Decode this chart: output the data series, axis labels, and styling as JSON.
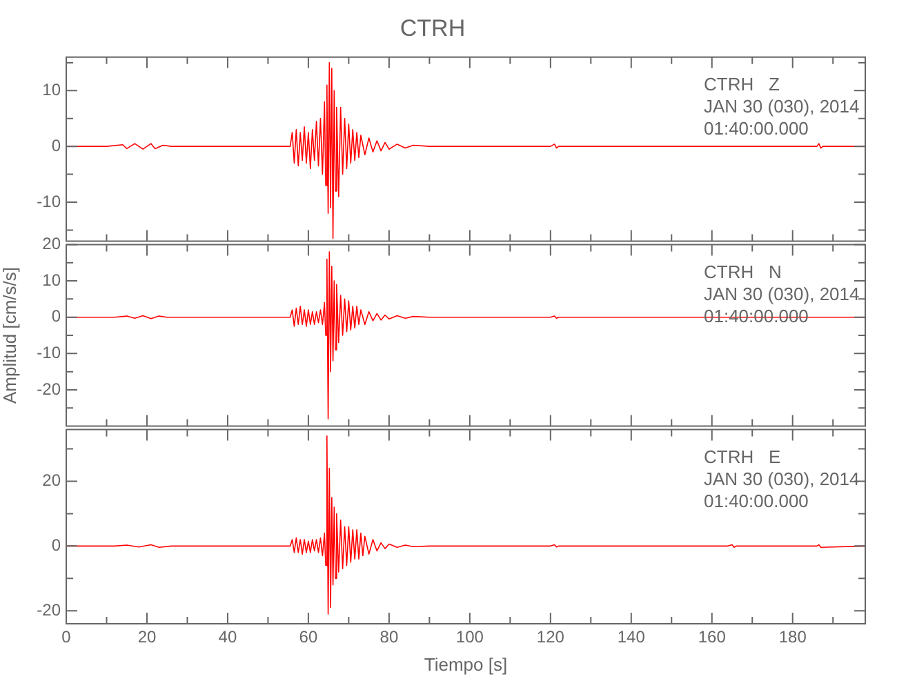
{
  "chart_data": [
    {
      "type": "line",
      "title": "CTRH",
      "annotations": [
        "CTRH   Z",
        "JAN 30 (030), 2014",
        "01:40:00.000"
      ],
      "tick_labels": "y",
      "xlim": [
        0,
        198
      ],
      "xticks": [
        0,
        {
          "value": 10,
          "label": null
        },
        20,
        {
          "value": 30,
          "label": null
        },
        40,
        {
          "value": 50,
          "label": null
        },
        60,
        {
          "value": 70,
          "label": null
        },
        80,
        {
          "value": 90,
          "label": null
        },
        100,
        {
          "value": 110,
          "label": null
        },
        120,
        {
          "value": 130,
          "label": null
        },
        140,
        {
          "value": 150,
          "label": null
        },
        160,
        {
          "value": 170,
          "label": null
        },
        180,
        {
          "value": 190,
          "label": null
        }
      ],
      "ylim": [
        -17,
        16
      ],
      "yticks": [
        {
          "value": -15,
          "label": null
        },
        -10,
        {
          "value": -5,
          "label": null
        },
        0,
        {
          "value": 5,
          "label": null
        },
        10,
        {
          "value": 15,
          "label": null
        }
      ],
      "series": [
        {
          "color": "#ff0000",
          "x": [
            0,
            10,
            14,
            15,
            17,
            19,
            21,
            22,
            24,
            26,
            40,
            55.5,
            56,
            56.5,
            57,
            57.5,
            58,
            58.5,
            59,
            59.5,
            60,
            60.5,
            61,
            61.5,
            62,
            62.5,
            63,
            63.5,
            64,
            64.3,
            64.6,
            64.9,
            65.2,
            65.5,
            65.8,
            66.1,
            66.4,
            66.7,
            67,
            67.5,
            68,
            68.5,
            69,
            69.5,
            70,
            70.5,
            71,
            71.5,
            72,
            72.5,
            73,
            74,
            75,
            76,
            77,
            78,
            79,
            80,
            82,
            84,
            86,
            90,
            120,
            121,
            121.5,
            122,
            160,
            186,
            186.5,
            187,
            187.5,
            198
          ],
          "values": [
            0,
            0,
            0.3,
            -0.4,
            0.5,
            -0.5,
            0.5,
            -0.4,
            0.2,
            0,
            0,
            0,
            2.5,
            -3,
            3,
            -3.5,
            2.5,
            -2.5,
            3.5,
            -3,
            2.5,
            -4,
            3,
            -2.5,
            4.5,
            -3.5,
            5,
            -5,
            8,
            -7,
            11,
            -12,
            15,
            -11,
            14,
            -16.5,
            10,
            -8,
            7,
            -9,
            7,
            -5,
            5,
            -4,
            4,
            -3,
            3,
            -2.5,
            2.5,
            -2,
            2,
            -1.5,
            1.5,
            -1,
            1,
            -0.8,
            0.7,
            -0.5,
            0.4,
            -0.3,
            0.2,
            0,
            0,
            0.4,
            -0.3,
            0,
            0,
            0,
            0.5,
            -0.3,
            0,
            0
          ]
        }
      ]
    },
    {
      "type": "line",
      "ylabel": "Amplitud [cm/s/s]",
      "annotations": [
        "CTRH   N",
        "JAN 30 (030), 2014",
        "01:40:00.000"
      ],
      "tick_labels": "y",
      "xlim": [
        0,
        198
      ],
      "xticks": [
        0,
        {
          "value": 10,
          "label": null
        },
        20,
        {
          "value": 30,
          "label": null
        },
        40,
        {
          "value": 50,
          "label": null
        },
        60,
        {
          "value": 70,
          "label": null
        },
        80,
        {
          "value": 90,
          "label": null
        },
        100,
        {
          "value": 110,
          "label": null
        },
        120,
        {
          "value": 130,
          "label": null
        },
        140,
        {
          "value": 150,
          "label": null
        },
        160,
        {
          "value": 170,
          "label": null
        },
        180,
        {
          "value": 190,
          "label": null
        }
      ],
      "ylim": [
        -30,
        20
      ],
      "yticks": [
        {
          "value": -25,
          "label": null
        },
        -20,
        {
          "value": -15,
          "label": null
        },
        -10,
        {
          "value": -5,
          "label": null
        },
        0,
        {
          "value": 5,
          "label": null
        },
        10,
        {
          "value": 15,
          "label": null
        },
        20
      ],
      "series": [
        {
          "color": "#ff0000",
          "x": [
            0,
            12,
            15,
            17,
            19,
            21,
            23,
            25,
            40,
            55.5,
            56,
            56.5,
            57,
            57.5,
            58,
            58.5,
            59,
            59.5,
            60,
            60.5,
            61,
            61.5,
            62,
            62.5,
            63,
            63.5,
            64,
            64.3,
            64.6,
            64.9,
            65.2,
            65.5,
            65.8,
            66.1,
            66.4,
            66.7,
            67,
            67.5,
            68,
            68.5,
            69,
            69.5,
            70,
            70.5,
            71,
            71.5,
            72,
            72.5,
            73,
            74,
            75,
            76,
            77,
            78,
            79,
            80,
            82,
            84,
            86,
            90,
            120,
            121,
            121.5,
            122,
            198
          ],
          "values": [
            0,
            0,
            0.3,
            -0.3,
            0.4,
            -0.4,
            0.3,
            0,
            0,
            0,
            2,
            -2.5,
            2.5,
            -2,
            3,
            -2,
            2,
            -2.5,
            2,
            -2,
            1.5,
            -2,
            1.5,
            -1.5,
            2,
            -2,
            4,
            -5,
            16,
            -28,
            18,
            -15,
            14,
            -12,
            10,
            -9,
            9,
            -7,
            6,
            -5,
            5,
            -4,
            4.5,
            -3.5,
            3,
            -3,
            3,
            -2,
            2,
            -2,
            1.5,
            -1,
            1,
            -0.8,
            0.6,
            -0.5,
            0.4,
            -0.3,
            0.2,
            0,
            0,
            0.3,
            -0.3,
            0,
            0
          ]
        }
      ]
    },
    {
      "type": "line",
      "xlabel": "Tiempo [s]",
      "annotations": [
        "CTRH   E",
        "JAN 30 (030), 2014",
        "01:40:00.000"
      ],
      "xlim": [
        0,
        198
      ],
      "xticks": [
        0,
        {
          "value": 10,
          "label": null
        },
        20,
        {
          "value": 30,
          "label": null
        },
        40,
        {
          "value": 50,
          "label": null
        },
        60,
        {
          "value": 70,
          "label": null
        },
        80,
        {
          "value": 90,
          "label": null
        },
        100,
        {
          "value": 110,
          "label": null
        },
        120,
        {
          "value": 130,
          "label": null
        },
        140,
        {
          "value": 150,
          "label": null
        },
        160,
        {
          "value": 170,
          "label": null
        },
        180,
        {
          "value": 190,
          "label": null
        }
      ],
      "ylim": [
        -24,
        36
      ],
      "yticks": [
        {
          "value": -20,
          "label": "-20"
        },
        {
          "value": -10,
          "label": null
        },
        0,
        {
          "value": 10,
          "label": null
        },
        20,
        {
          "value": 30,
          "label": null
        }
      ],
      "series": [
        {
          "color": "#ff0000",
          "x": [
            0,
            12,
            15,
            18,
            21,
            23,
            26,
            40,
            55.5,
            56,
            56.5,
            57,
            57.5,
            58,
            58.5,
            59,
            59.5,
            60,
            60.5,
            61,
            61.5,
            62,
            62.5,
            63,
            63.5,
            64,
            64.3,
            64.6,
            64.9,
            65.2,
            65.5,
            65.8,
            66.1,
            66.4,
            66.7,
            67,
            67.5,
            68,
            68.5,
            69,
            69.5,
            70,
            70.5,
            71,
            71.5,
            72,
            72.5,
            73,
            73.5,
            74,
            75,
            76,
            77,
            78,
            79,
            80,
            82,
            84,
            86,
            90,
            120,
            121,
            121.5,
            122,
            164,
            165,
            165.5,
            166,
            186,
            186.5,
            187,
            198
          ],
          "values": [
            0,
            0,
            0.3,
            -0.3,
            0.4,
            -0.4,
            0,
            0,
            0,
            2,
            -2,
            2.5,
            -2,
            2,
            -2.5,
            2,
            -2,
            1.5,
            -2,
            2,
            -1.5,
            2,
            -2,
            2.5,
            -3,
            4,
            -6,
            34,
            -21,
            24,
            -19,
            15,
            -12,
            12,
            -10,
            10,
            -8,
            8,
            -7,
            6,
            -6,
            6,
            -5,
            5,
            -4,
            5,
            -4,
            4,
            -3,
            3,
            -2.5,
            2,
            -1.5,
            1,
            -0.8,
            0.6,
            -0.4,
            0.3,
            -0.2,
            0,
            0,
            0.4,
            -0.3,
            0,
            0,
            0.4,
            -0.4,
            0,
            0,
            0.4,
            -0.4,
            0
          ]
        }
      ]
    }
  ]
}
